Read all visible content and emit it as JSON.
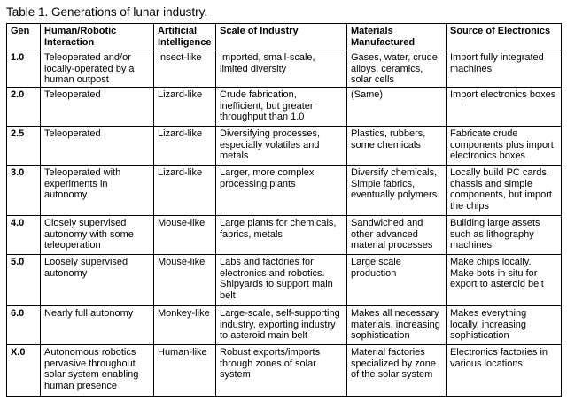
{
  "caption": "Table 1.  Generations of lunar industry.",
  "columns": [
    "Gen",
    "Human/Robotic Interaction",
    "Artificial Intelligence",
    "Scale of Industry",
    "Materials Manufactured",
    "Source of Electronics"
  ],
  "rows": [
    {
      "gen": "1.0",
      "interaction": "Teleoperated and/or locally-operated by a human outpost",
      "ai": "Insect-like",
      "scale": "Imported, small-scale, limited diversity",
      "materials": "Gases, water, crude alloys, ceramics, solar cells",
      "electronics": "Import fully integrated machines"
    },
    {
      "gen": "2.0",
      "interaction": "Teleoperated",
      "ai": "Lizard-like",
      "scale": "Crude fabrication, inefficient, but greater throughput than 1.0",
      "materials": "(Same)",
      "electronics": "Import electronics boxes"
    },
    {
      "gen": "2.5",
      "interaction": "Teleoperated",
      "ai": "Lizard-like",
      "scale": "Diversifying processes, especially volatiles and metals",
      "materials": "Plastics, rubbers, some chemicals",
      "electronics": "Fabricate crude components plus import electronics boxes"
    },
    {
      "gen": "3.0",
      "interaction": "Teleoperated with experiments in autonomy",
      "ai": "Lizard-like",
      "scale": "Larger, more complex processing plants",
      "materials": "Diversify chemicals, Simple fabrics, eventually polymers.",
      "electronics": "Locally build PC cards, chassis and simple components, but import the chips"
    },
    {
      "gen": "4.0",
      "interaction": "Closely supervised autonomy with some teleoperation",
      "ai": "Mouse-like",
      "scale": "Large plants for chemicals, fabrics, metals",
      "materials": "Sandwiched and other advanced material processes",
      "electronics": "Building large assets such as lithography machines"
    },
    {
      "gen": "5.0",
      "interaction": "Loosely supervised autonomy",
      "ai": "Mouse-like",
      "scale": "Labs and factories for electronics and robotics. Shipyards to support main belt",
      "materials": "Large scale production",
      "electronics": "Make chips locally. Make bots in situ for export to asteroid belt"
    },
    {
      "gen": "6.0",
      "interaction": "Nearly full autonomy",
      "ai": "Monkey-like",
      "scale": "Large-scale, self-supporting industry, exporting industry to asteroid main belt",
      "materials": "Makes all necessary materials, increasing sophistication",
      "electronics": "Makes everything locally, increasing sophistication"
    },
    {
      "gen": "X.0",
      "interaction": "Autonomous robotics pervasive throughout solar system enabling human presence",
      "ai": "Human-like",
      "scale": "Robust exports/imports through zones of solar system",
      "materials": "Material factories specialized by zone of the solar system",
      "electronics": "Electronics factories in various locations"
    }
  ]
}
